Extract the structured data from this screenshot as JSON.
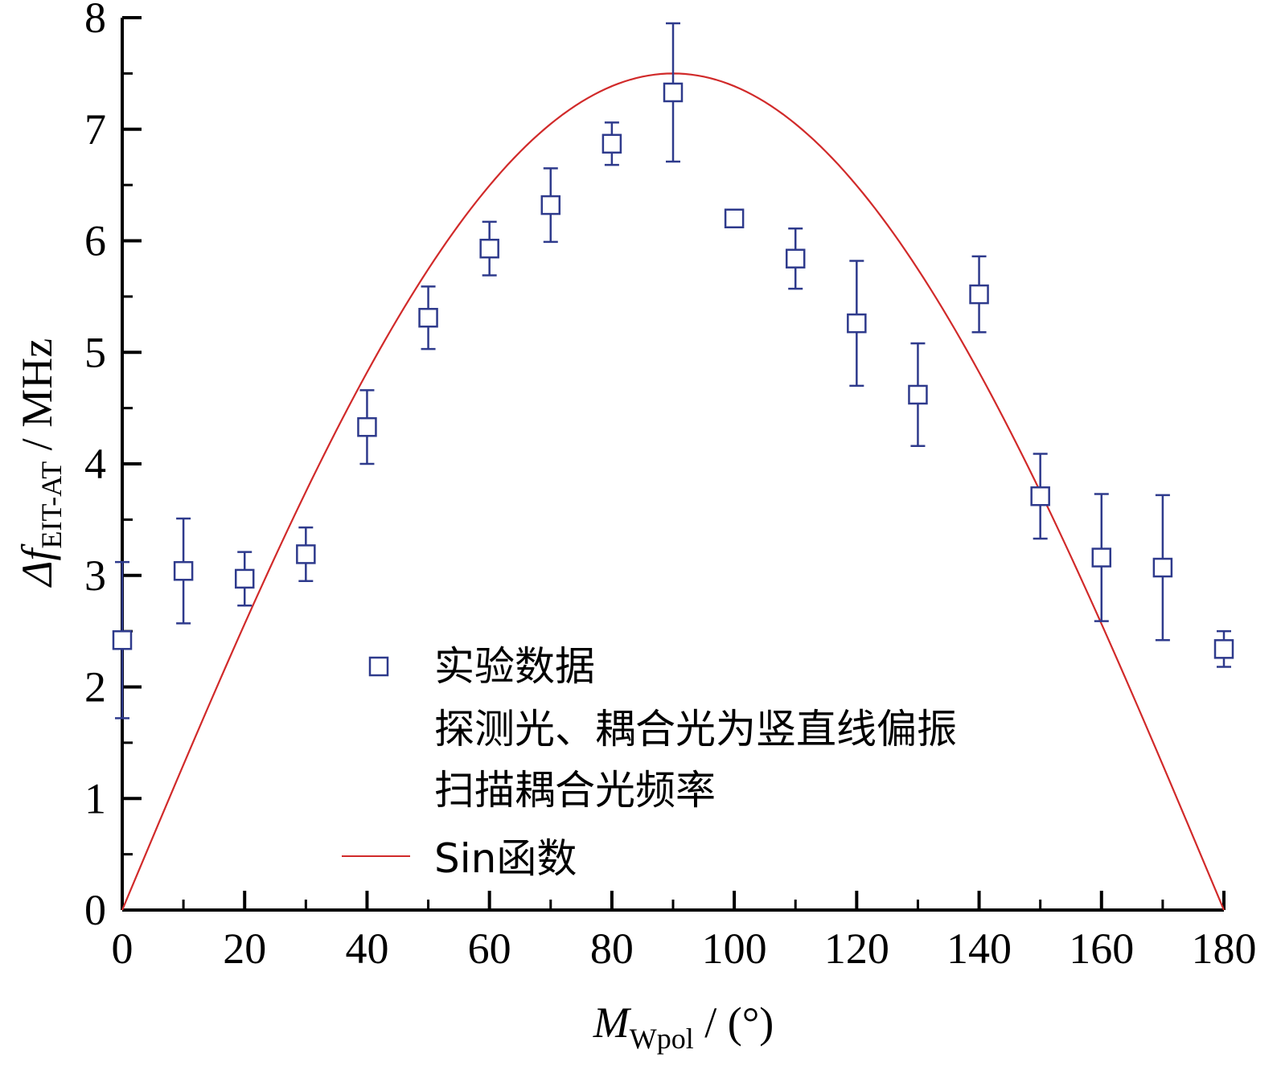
{
  "chart_data": {
    "type": "scatter",
    "xlim": [
      0,
      180
    ],
    "ylim": [
      0,
      8
    ],
    "x_ticks": [
      "0",
      "20",
      "40",
      "60",
      "80",
      "100",
      "120",
      "140",
      "160",
      "180"
    ],
    "y_ticks": [
      "0",
      "1",
      "2",
      "3",
      "4",
      "5",
      "6",
      "7",
      "8"
    ],
    "xlabel": {
      "main": "M",
      "sub": "Wpol",
      "unit": " / (°)"
    },
    "ylabel": {
      "main": "Δf",
      "sub": "EIT-AT",
      "unit": " / MHz"
    },
    "legend": {
      "placement": "bottom-center",
      "marker_label_lines": [
        "实验数据",
        "探测光、耦合光为竖直线偏振",
        "扫描耦合光频率"
      ],
      "line_label": "Sin函数"
    },
    "series": [
      {
        "kind": "points",
        "color": "#2e3a8c",
        "points": [
          {
            "x": 0,
            "y": 2.42,
            "err": 0.7
          },
          {
            "x": 10,
            "y": 3.04,
            "err": 0.47
          },
          {
            "x": 20,
            "y": 2.97,
            "err": 0.24
          },
          {
            "x": 30,
            "y": 3.19,
            "err": 0.24
          },
          {
            "x": 40,
            "y": 4.33,
            "err": 0.33
          },
          {
            "x": 50,
            "y": 5.31,
            "err": 0.28
          },
          {
            "x": 60,
            "y": 5.93,
            "err": 0.24
          },
          {
            "x": 70,
            "y": 6.32,
            "err": 0.33
          },
          {
            "x": 80,
            "y": 6.87,
            "err": 0.19
          },
          {
            "x": 90,
            "y": 7.33,
            "err": 0.62
          },
          {
            "x": 100,
            "y": 6.2,
            "err": 0.05
          },
          {
            "x": 110,
            "y": 5.84,
            "err": 0.27
          },
          {
            "x": 120,
            "y": 5.26,
            "err": 0.56
          },
          {
            "x": 130,
            "y": 4.62,
            "err": 0.46
          },
          {
            "x": 140,
            "y": 5.52,
            "err": 0.34
          },
          {
            "x": 150,
            "y": 3.71,
            "err": 0.38
          },
          {
            "x": 160,
            "y": 3.16,
            "err": 0.57
          },
          {
            "x": 170,
            "y": 3.07,
            "err": 0.65
          },
          {
            "x": 180,
            "y": 2.34,
            "err": 0.16
          }
        ]
      },
      {
        "kind": "line",
        "color": "#d12a2a",
        "function": "sin",
        "amplitude": 7.5,
        "period_deg": 360
      }
    ]
  }
}
